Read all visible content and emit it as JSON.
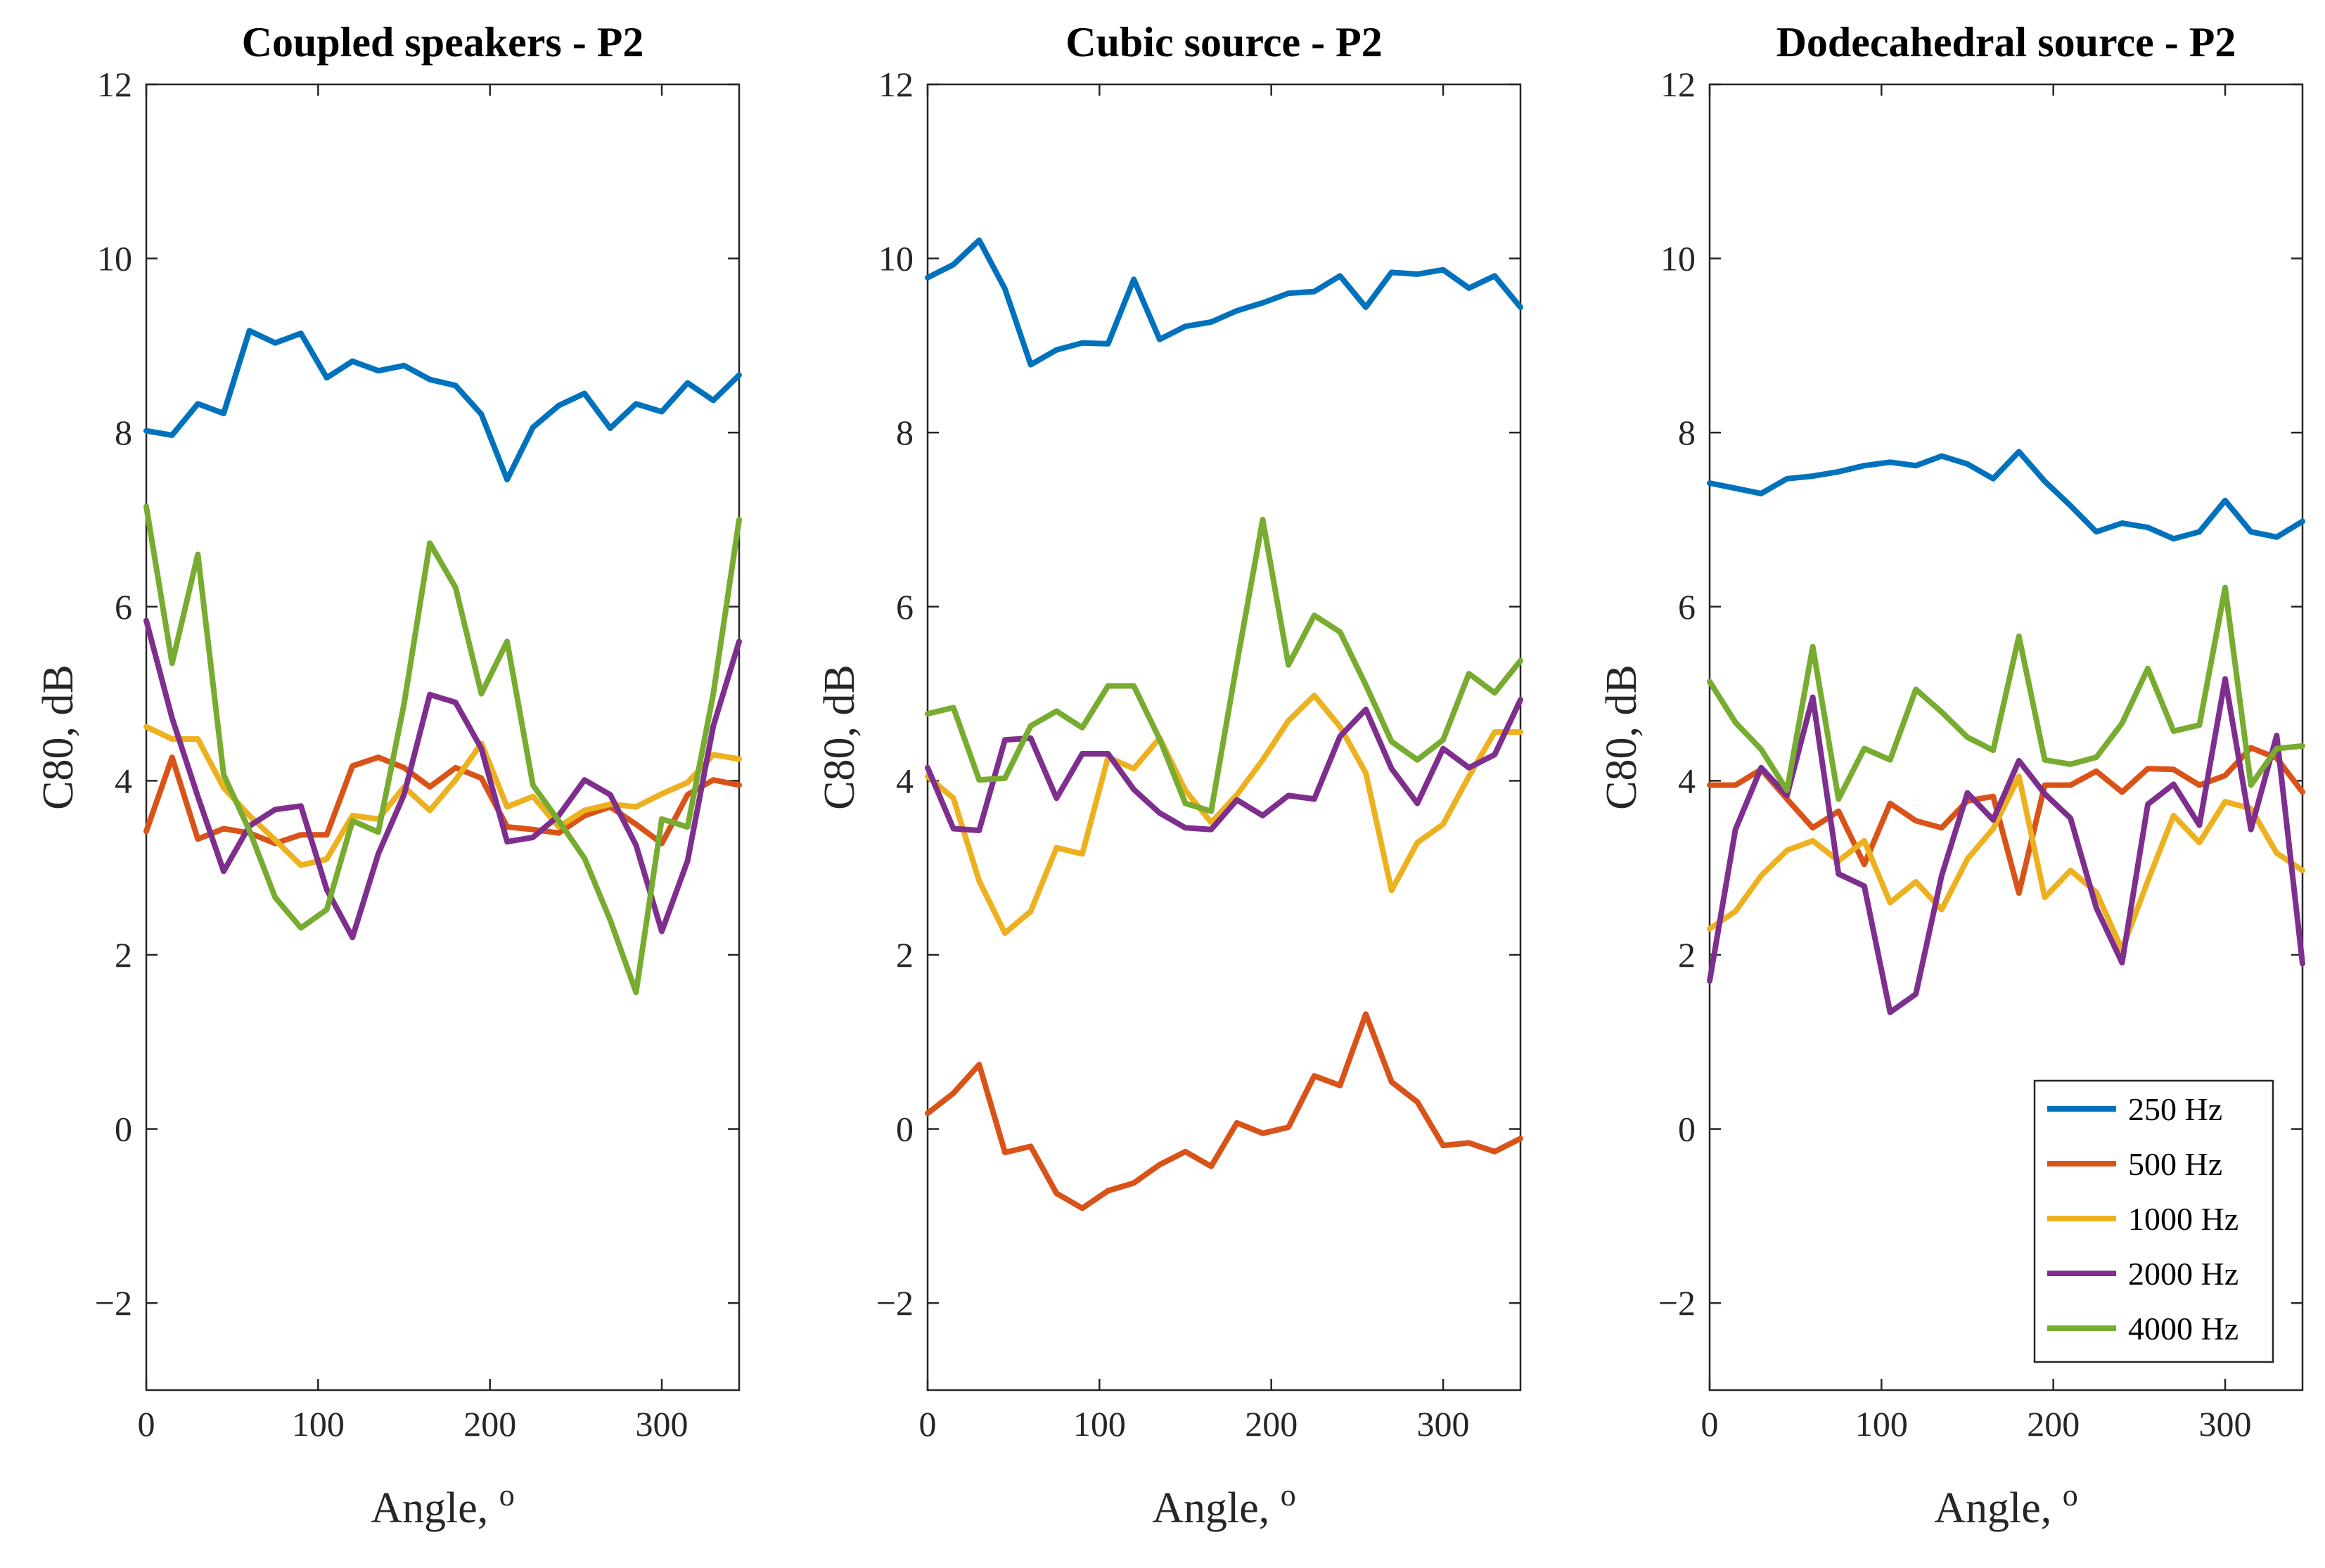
{
  "chart_data": [
    {
      "type": "line",
      "title": "Coupled speakers - P2",
      "xlabel": "Angle, o",
      "ylabel": "C80, dB",
      "xlim": [
        0,
        345
      ],
      "ylim": [
        -3,
        12
      ],
      "xticks": [
        "0",
        "100",
        "200",
        "300"
      ],
      "yticks": [
        "−2",
        "0",
        "2",
        "4",
        "6",
        "8",
        "10",
        "12"
      ],
      "x": [
        0,
        15,
        30,
        45,
        60,
        75,
        90,
        105,
        120,
        135,
        150,
        165,
        180,
        195,
        210,
        225,
        240,
        255,
        270,
        285,
        300,
        315,
        330,
        345
      ],
      "series": [
        {
          "name": "250 Hz",
          "color": "#0072BD",
          "values": [
            8.02,
            7.97,
            8.33,
            8.22,
            9.17,
            9.03,
            9.14,
            8.63,
            8.82,
            8.71,
            8.77,
            8.61,
            8.54,
            8.21,
            7.46,
            8.06,
            8.31,
            8.45,
            8.05,
            8.33,
            8.24,
            8.57,
            8.37,
            8.66
          ]
        },
        {
          "name": "500 Hz",
          "color": "#D95319",
          "values": [
            3.42,
            4.27,
            3.33,
            3.45,
            3.4,
            3.28,
            3.38,
            3.38,
            4.17,
            4.27,
            4.15,
            3.93,
            4.15,
            4.03,
            3.47,
            3.44,
            3.4,
            3.6,
            3.7,
            3.5,
            3.28,
            3.84,
            4.01,
            3.95
          ]
        },
        {
          "name": "1000 Hz",
          "color": "#EDB120",
          "values": [
            4.62,
            4.48,
            4.48,
            3.92,
            3.6,
            3.32,
            3.03,
            3.1,
            3.6,
            3.56,
            3.93,
            3.66,
            4.01,
            4.43,
            3.7,
            3.82,
            3.47,
            3.66,
            3.73,
            3.7,
            3.85,
            3.98,
            4.3,
            4.25
          ]
        },
        {
          "name": "2000 Hz",
          "color": "#7E2F8E",
          "values": [
            5.84,
            4.72,
            3.82,
            2.96,
            3.48,
            3.67,
            3.71,
            2.75,
            2.2,
            3.16,
            3.84,
            4.99,
            4.9,
            4.37,
            3.3,
            3.35,
            3.6,
            4.01,
            3.84,
            3.26,
            2.27,
            3.08,
            4.63,
            5.6
          ]
        },
        {
          "name": "4000 Hz",
          "color": "#77AC30",
          "values": [
            7.15,
            5.35,
            6.6,
            4.07,
            3.43,
            2.66,
            2.31,
            2.52,
            3.54,
            3.41,
            4.88,
            6.73,
            6.22,
            5.0,
            5.6,
            3.95,
            3.54,
            3.11,
            2.4,
            1.57,
            3.56,
            3.47,
            5.0,
            7.0
          ]
        }
      ]
    },
    {
      "type": "line",
      "title": "Cubic source - P2",
      "xlabel": "Angle, o",
      "ylabel": "C80, dB",
      "xlim": [
        0,
        345
      ],
      "ylim": [
        -3,
        12
      ],
      "xticks": [
        "0",
        "100",
        "200",
        "300"
      ],
      "yticks": [
        "−2",
        "0",
        "2",
        "4",
        "6",
        "8",
        "10",
        "12"
      ],
      "x": [
        0,
        15,
        30,
        45,
        60,
        75,
        90,
        105,
        120,
        135,
        150,
        165,
        180,
        195,
        210,
        225,
        240,
        255,
        270,
        285,
        300,
        315,
        330,
        345
      ],
      "series": [
        {
          "name": "250 Hz",
          "color": "#0072BD",
          "values": [
            9.78,
            9.93,
            10.21,
            9.65,
            8.78,
            8.95,
            9.03,
            9.02,
            9.76,
            9.07,
            9.22,
            9.27,
            9.4,
            9.49,
            9.6,
            9.62,
            9.8,
            9.44,
            9.84,
            9.82,
            9.87,
            9.66,
            9.8,
            9.44
          ]
        },
        {
          "name": "500 Hz",
          "color": "#D95319",
          "values": [
            0.18,
            0.41,
            0.74,
            -0.27,
            -0.2,
            -0.74,
            -0.91,
            -0.71,
            -0.62,
            -0.41,
            -0.26,
            -0.43,
            0.07,
            -0.05,
            0.02,
            0.61,
            0.5,
            1.32,
            0.54,
            0.31,
            -0.19,
            -0.16,
            -0.26,
            -0.11
          ]
        },
        {
          "name": "1000 Hz",
          "color": "#EDB120",
          "values": [
            4.05,
            3.8,
            2.85,
            2.25,
            2.5,
            3.23,
            3.16,
            4.27,
            4.14,
            4.49,
            3.89,
            3.52,
            3.84,
            4.24,
            4.69,
            4.98,
            4.62,
            4.09,
            2.74,
            3.29,
            3.5,
            4.05,
            4.56,
            4.56
          ]
        },
        {
          "name": "2000 Hz",
          "color": "#7E2F8E",
          "values": [
            4.15,
            3.45,
            3.43,
            4.47,
            4.49,
            3.8,
            4.31,
            4.31,
            3.9,
            3.63,
            3.46,
            3.44,
            3.78,
            3.6,
            3.83,
            3.79,
            4.51,
            4.82,
            4.14,
            3.74,
            4.37,
            4.15,
            4.3,
            4.93
          ]
        },
        {
          "name": "4000 Hz",
          "color": "#77AC30",
          "values": [
            4.77,
            4.84,
            4.01,
            4.03,
            4.63,
            4.8,
            4.61,
            5.09,
            5.09,
            4.48,
            3.74,
            3.65,
            5.35,
            7.0,
            5.33,
            5.9,
            5.71,
            5.1,
            4.45,
            4.24,
            4.47,
            5.23,
            5.01,
            5.38
          ]
        }
      ]
    },
    {
      "type": "line",
      "title": "Dodecahedral source - P2",
      "xlabel": "Angle, o",
      "ylabel": "C80, dB",
      "xlim": [
        0,
        345
      ],
      "ylim": [
        -3,
        12
      ],
      "xticks": [
        "0",
        "100",
        "200",
        "300"
      ],
      "yticks": [
        "−2",
        "0",
        "2",
        "4",
        "6",
        "8",
        "10",
        "12"
      ],
      "x": [
        0,
        15,
        30,
        45,
        60,
        75,
        90,
        105,
        120,
        135,
        150,
        165,
        180,
        195,
        210,
        225,
        240,
        255,
        270,
        285,
        300,
        315,
        330,
        345
      ],
      "series": [
        {
          "name": "250 Hz",
          "color": "#0072BD",
          "values": [
            7.42,
            7.36,
            7.3,
            7.47,
            7.5,
            7.55,
            7.62,
            7.66,
            7.62,
            7.73,
            7.64,
            7.47,
            7.78,
            7.44,
            7.16,
            6.86,
            6.96,
            6.91,
            6.78,
            6.86,
            7.22,
            6.86,
            6.8,
            6.98
          ]
        },
        {
          "name": "500 Hz",
          "color": "#D95319",
          "values": [
            3.95,
            3.95,
            4.13,
            3.79,
            3.46,
            3.65,
            3.04,
            3.74,
            3.54,
            3.46,
            3.77,
            3.82,
            2.71,
            3.95,
            3.95,
            4.11,
            3.87,
            4.14,
            4.13,
            3.95,
            4.06,
            4.38,
            4.26,
            3.87
          ]
        },
        {
          "name": "1000 Hz",
          "color": "#EDB120",
          "values": [
            2.3,
            2.5,
            2.91,
            3.2,
            3.31,
            3.08,
            3.31,
            2.6,
            2.84,
            2.52,
            3.1,
            3.45,
            4.05,
            2.66,
            2.97,
            2.72,
            2.06,
            2.85,
            3.6,
            3.29,
            3.76,
            3.68,
            3.17,
            2.97
          ]
        },
        {
          "name": "2000 Hz",
          "color": "#7E2F8E",
          "values": [
            1.7,
            3.44,
            4.15,
            3.83,
            4.96,
            2.93,
            2.79,
            1.34,
            1.55,
            2.91,
            3.86,
            3.55,
            4.23,
            3.85,
            3.57,
            2.54,
            1.91,
            3.73,
            3.96,
            3.49,
            5.17,
            3.44,
            4.52,
            1.9
          ]
        },
        {
          "name": "4000 Hz",
          "color": "#77AC30",
          "values": [
            5.14,
            4.67,
            4.36,
            3.89,
            5.54,
            3.79,
            4.37,
            4.24,
            5.05,
            4.79,
            4.5,
            4.35,
            5.66,
            4.24,
            4.19,
            4.27,
            4.66,
            5.29,
            4.57,
            4.64,
            6.22,
            3.95,
            4.37,
            4.4
          ]
        }
      ]
    }
  ],
  "legend": {
    "location": "bottom-right of third panel",
    "entries": [
      "250 Hz",
      "500 Hz",
      "1000 Hz",
      "2000 Hz",
      "4000 Hz"
    ]
  }
}
